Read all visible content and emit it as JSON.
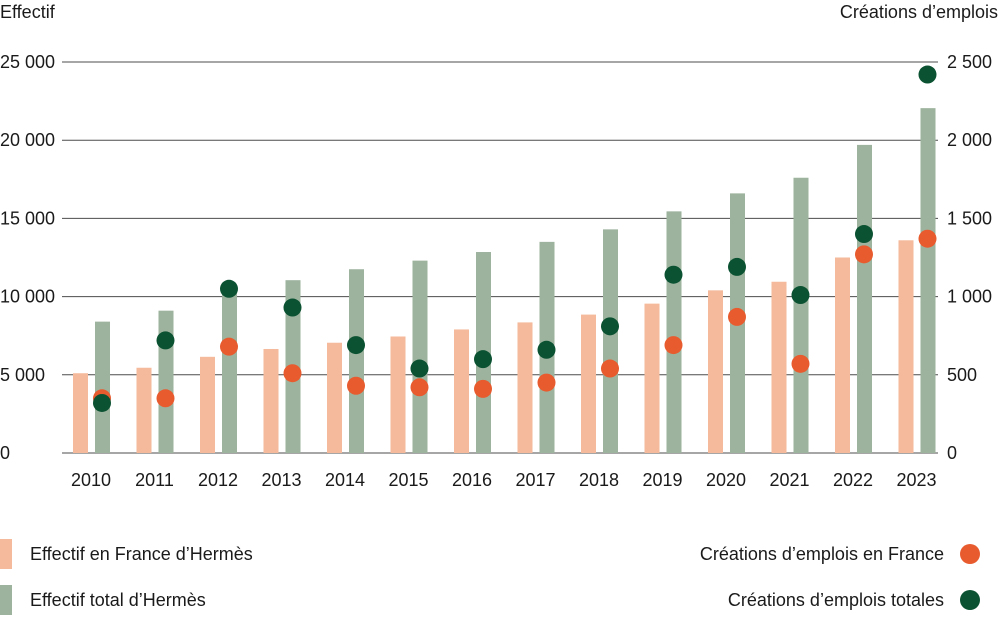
{
  "chart_data": {
    "type": "bar",
    "categories": [
      "2010",
      "2011",
      "2012",
      "2013",
      "2014",
      "2015",
      "2016",
      "2017",
      "2018",
      "2019",
      "2020",
      "2021",
      "2022",
      "2023"
    ],
    "left_axis": {
      "title": "Effectif",
      "ylim": [
        0,
        25000
      ],
      "ticks": [
        0,
        5000,
        10000,
        15000,
        20000,
        25000
      ],
      "tick_labels": [
        "0",
        "5 000",
        "10 000",
        "15 000",
        "20 000",
        "25 000"
      ]
    },
    "right_axis": {
      "title": "Créations d’emplois",
      "ylim": [
        0,
        2500
      ],
      "ticks": [
        0,
        500,
        1000,
        1500,
        2000,
        2500
      ],
      "tick_labels": [
        "0",
        "500",
        "1 000",
        "1 500",
        "2 000",
        "2 500"
      ]
    },
    "grid": true,
    "series": [
      {
        "name": "Effectif en France d’Hermès",
        "type": "bar",
        "axis": "left",
        "color": "#f5b99b",
        "values": [
          5100,
          5450,
          6150,
          6650,
          7050,
          7450,
          7900,
          8350,
          8850,
          9550,
          10400,
          10950,
          12500,
          13600
        ]
      },
      {
        "name": "Effectif total d’Hermès",
        "type": "bar",
        "axis": "left",
        "color": "#9db39e",
        "values": [
          8400,
          9100,
          10250,
          11050,
          11750,
          12300,
          12850,
          13500,
          14300,
          15450,
          16600,
          17600,
          19700,
          22050
        ]
      },
      {
        "name": "Créations d’emplois en France",
        "type": "scatter",
        "axis": "right",
        "color": "#e85b2e",
        "values": [
          350,
          350,
          680,
          510,
          430,
          420,
          410,
          450,
          540,
          690,
          870,
          570,
          1270,
          1370
        ]
      },
      {
        "name": "Créations d’emplois totales",
        "type": "scatter",
        "axis": "right",
        "color": "#0b5232",
        "values": [
          320,
          720,
          1050,
          930,
          690,
          540,
          600,
          660,
          810,
          1140,
          1190,
          1010,
          1400,
          2420
        ]
      }
    ],
    "legend_placement": "bottom"
  },
  "colors": {
    "grid": "#4d4d4d",
    "text": "#1a1a1a"
  }
}
